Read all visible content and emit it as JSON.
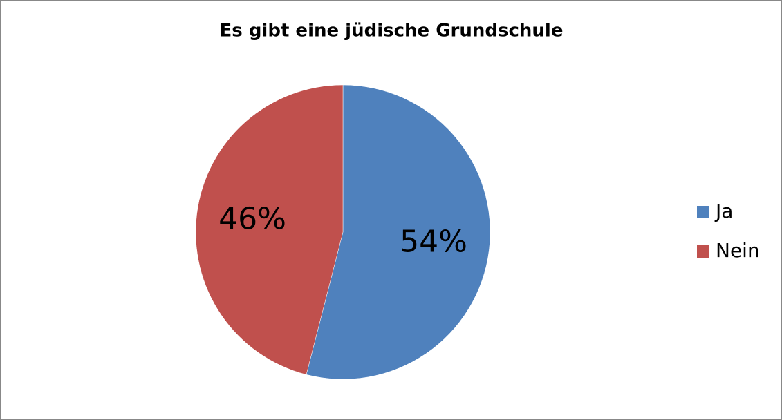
{
  "chart_data": {
    "type": "pie",
    "title": "Es gibt eine jüdische Grundschule",
    "categories": [
      "Ja",
      "Nein"
    ],
    "values": [
      54,
      46
    ],
    "value_labels": [
      "54%",
      "46%"
    ],
    "colors": [
      "#4f81bd",
      "#c0504d"
    ],
    "legend": "right"
  }
}
